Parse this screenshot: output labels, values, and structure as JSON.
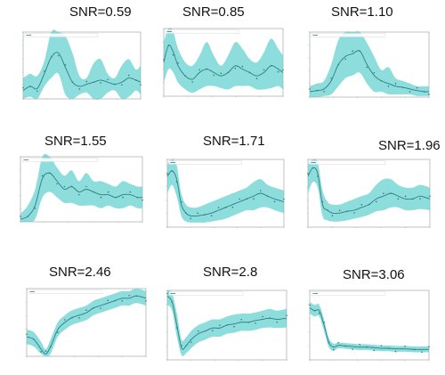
{
  "figure": {
    "colors": {
      "band": "#5ccfcf",
      "band_opacity": 0.7,
      "mean_line": "#2a7f86",
      "points": "#4d6e6e",
      "frame": "#9a9a9a"
    }
  },
  "chart_data": [
    {
      "type": "line",
      "title": "SNR=0.59",
      "xlim": [
        0,
        50
      ],
      "ylim": [
        0,
        1.6
      ],
      "x": [
        0,
        3,
        6,
        9,
        12,
        15,
        18,
        21,
        24,
        27,
        30,
        33,
        36,
        39,
        42,
        45,
        48,
        50
      ],
      "series": [
        {
          "mean": [
            0.2,
            0.3,
            0.25,
            0.6,
            1.0,
            1.1,
            0.75,
            0.4,
            0.3,
            0.35,
            0.4,
            0.45,
            0.4,
            0.35,
            0.4,
            0.5,
            0.45,
            0.4
          ],
          "upper": [
            0.5,
            0.6,
            0.55,
            0.9,
            1.6,
            1.6,
            1.5,
            1.1,
            0.55,
            0.5,
            0.85,
            0.95,
            0.6,
            0.5,
            0.8,
            0.95,
            0.7,
            0.8
          ],
          "lower": [
            0.0,
            0.05,
            0.0,
            0.3,
            0.5,
            0.6,
            0.1,
            0.0,
            0.1,
            0.15,
            0.0,
            0.0,
            0.15,
            0.2,
            0.0,
            0.05,
            0.2,
            0.1
          ]
        }
      ]
    },
    {
      "type": "line",
      "title": "SNR=0.85",
      "xlim": [
        0,
        50
      ],
      "ylim": [
        0,
        1.0
      ],
      "x": [
        0,
        2,
        4,
        6,
        9,
        12,
        15,
        18,
        21,
        24,
        27,
        30,
        33,
        36,
        39,
        42,
        45,
        48,
        50
      ],
      "series": [
        {
          "mean": [
            0.5,
            0.75,
            0.65,
            0.45,
            0.3,
            0.25,
            0.35,
            0.4,
            0.35,
            0.3,
            0.35,
            0.45,
            0.4,
            0.35,
            0.3,
            0.35,
            0.45,
            0.4,
            0.35
          ],
          "upper": [
            0.8,
            1.0,
            0.95,
            0.7,
            0.5,
            0.45,
            0.6,
            0.8,
            0.6,
            0.45,
            0.6,
            0.8,
            0.7,
            0.55,
            0.5,
            0.65,
            0.85,
            0.7,
            0.6
          ],
          "lower": [
            0.2,
            0.4,
            0.35,
            0.2,
            0.1,
            0.05,
            0.1,
            0.15,
            0.15,
            0.12,
            0.1,
            0.15,
            0.15,
            0.15,
            0.1,
            0.1,
            0.12,
            0.15,
            0.1
          ]
        }
      ]
    },
    {
      "type": "line",
      "title": "SNR=1.10",
      "xlim": [
        0,
        50
      ],
      "ylim": [
        0,
        1.2
      ],
      "x": [
        0,
        3,
        6,
        9,
        12,
        15,
        18,
        21,
        24,
        27,
        30,
        33,
        36,
        39,
        42,
        45,
        48,
        50
      ],
      "series": [
        {
          "mean": [
            0.1,
            0.12,
            0.15,
            0.3,
            0.6,
            0.75,
            0.8,
            0.85,
            0.6,
            0.4,
            0.3,
            0.25,
            0.2,
            0.18,
            0.15,
            0.12,
            0.1,
            0.1
          ],
          "upper": [
            0.2,
            0.25,
            0.3,
            0.6,
            1.05,
            1.2,
            1.2,
            1.2,
            1.0,
            0.75,
            0.5,
            0.55,
            0.35,
            0.3,
            0.25,
            0.2,
            0.2,
            0.2
          ],
          "lower": [
            0.0,
            0.0,
            0.02,
            0.05,
            0.2,
            0.35,
            0.4,
            0.45,
            0.25,
            0.1,
            0.1,
            0.05,
            0.05,
            0.05,
            0.05,
            0.02,
            0.02,
            0.02
          ]
        }
      ]
    },
    {
      "type": "line",
      "title": "SNR=1.55",
      "xlim": [
        0,
        50
      ],
      "ylim": [
        0,
        1.2
      ],
      "x": [
        0,
        3,
        6,
        9,
        12,
        15,
        18,
        21,
        24,
        27,
        30,
        33,
        36,
        39,
        42,
        45,
        48,
        50
      ],
      "series": [
        {
          "mean": [
            0.05,
            0.1,
            0.3,
            0.8,
            0.9,
            0.75,
            0.6,
            0.65,
            0.55,
            0.6,
            0.55,
            0.5,
            0.5,
            0.45,
            0.5,
            0.5,
            0.45,
            0.45
          ],
          "upper": [
            0.15,
            0.3,
            0.6,
            1.2,
            1.2,
            1.0,
            0.85,
            0.95,
            0.75,
            0.9,
            0.75,
            0.75,
            0.7,
            0.65,
            0.75,
            0.7,
            0.65,
            0.65
          ],
          "lower": [
            0.0,
            0.0,
            0.05,
            0.45,
            0.55,
            0.45,
            0.35,
            0.35,
            0.3,
            0.3,
            0.3,
            0.25,
            0.3,
            0.25,
            0.25,
            0.3,
            0.25,
            0.25
          ]
        }
      ]
    },
    {
      "type": "line",
      "title": "SNR=1.71",
      "xlim": [
        0,
        50
      ],
      "ylim": [
        0,
        1.2
      ],
      "x": [
        0,
        2,
        4,
        6,
        8,
        10,
        13,
        16,
        19,
        22,
        25,
        28,
        31,
        34,
        37,
        40,
        43,
        46,
        50
      ],
      "series": [
        {
          "mean": [
            0.9,
            1.0,
            0.85,
            0.4,
            0.25,
            0.2,
            0.2,
            0.22,
            0.25,
            0.3,
            0.35,
            0.4,
            0.45,
            0.5,
            0.55,
            0.6,
            0.55,
            0.5,
            0.45
          ],
          "upper": [
            1.1,
            1.2,
            1.1,
            0.6,
            0.4,
            0.35,
            0.35,
            0.4,
            0.45,
            0.5,
            0.55,
            0.6,
            0.65,
            0.7,
            0.8,
            0.85,
            0.75,
            0.7,
            0.65
          ],
          "lower": [
            0.6,
            0.75,
            0.55,
            0.2,
            0.1,
            0.08,
            0.08,
            0.08,
            0.1,
            0.12,
            0.15,
            0.2,
            0.25,
            0.3,
            0.3,
            0.35,
            0.35,
            0.3,
            0.25
          ]
        }
      ]
    },
    {
      "type": "line",
      "title": "SNR=1.96",
      "xlim": [
        0,
        50
      ],
      "ylim": [
        0,
        1.2
      ],
      "x": [
        0,
        2,
        4,
        6,
        8,
        10,
        13,
        16,
        19,
        22,
        25,
        28,
        31,
        34,
        37,
        40,
        43,
        46,
        50
      ],
      "series": [
        {
          "mean": [
            0.9,
            1.05,
            0.95,
            0.4,
            0.3,
            0.25,
            0.25,
            0.28,
            0.3,
            0.35,
            0.4,
            0.5,
            0.55,
            0.6,
            0.55,
            0.5,
            0.5,
            0.55,
            0.5
          ],
          "upper": [
            1.1,
            1.2,
            1.15,
            0.65,
            0.45,
            0.4,
            0.4,
            0.45,
            0.5,
            0.55,
            0.6,
            0.75,
            0.85,
            0.85,
            0.75,
            0.7,
            0.7,
            0.75,
            0.7
          ],
          "lower": [
            0.6,
            0.8,
            0.7,
            0.2,
            0.12,
            0.1,
            0.1,
            0.12,
            0.15,
            0.18,
            0.22,
            0.28,
            0.3,
            0.35,
            0.35,
            0.3,
            0.3,
            0.32,
            0.3
          ]
        }
      ]
    },
    {
      "type": "line",
      "title": "SNR=2.46",
      "xlim": [
        0,
        50
      ],
      "ylim": [
        0,
        1.4
      ],
      "x": [
        0,
        3,
        6,
        8,
        10,
        13,
        16,
        19,
        22,
        25,
        28,
        31,
        34,
        37,
        40,
        43,
        46,
        50
      ],
      "series": [
        {
          "mean": [
            0.4,
            0.35,
            0.15,
            0.05,
            0.2,
            0.55,
            0.7,
            0.8,
            0.85,
            0.9,
            1.0,
            1.05,
            1.1,
            1.15,
            1.2,
            1.2,
            1.25,
            1.2
          ],
          "upper": [
            0.55,
            0.5,
            0.3,
            0.15,
            0.35,
            0.7,
            0.85,
            0.95,
            1.0,
            1.05,
            1.15,
            1.2,
            1.25,
            1.3,
            1.35,
            1.35,
            1.4,
            1.35
          ],
          "lower": [
            0.25,
            0.2,
            0.05,
            0.0,
            0.05,
            0.4,
            0.55,
            0.65,
            0.7,
            0.75,
            0.85,
            0.9,
            0.95,
            1.0,
            1.05,
            1.05,
            1.1,
            1.05
          ]
        }
      ]
    },
    {
      "type": "line",
      "title": "SNR=2.8",
      "xlim": [
        0,
        50
      ],
      "ylim": [
        0,
        1.2
      ],
      "x": [
        0,
        2,
        4,
        6,
        8,
        10,
        13,
        16,
        19,
        22,
        25,
        28,
        31,
        34,
        37,
        40,
        43,
        46,
        50
      ],
      "series": [
        {
          "mean": [
            1.1,
            1.0,
            0.6,
            0.2,
            0.25,
            0.35,
            0.45,
            0.5,
            0.55,
            0.55,
            0.6,
            0.62,
            0.65,
            0.65,
            0.68,
            0.7,
            0.72,
            0.7,
            0.72
          ],
          "upper": [
            1.2,
            1.15,
            0.8,
            0.35,
            0.4,
            0.5,
            0.6,
            0.65,
            0.7,
            0.7,
            0.75,
            0.78,
            0.8,
            0.8,
            0.82,
            0.85,
            0.88,
            0.85,
            0.88
          ],
          "lower": [
            0.95,
            0.85,
            0.4,
            0.08,
            0.12,
            0.2,
            0.3,
            0.35,
            0.4,
            0.4,
            0.45,
            0.47,
            0.5,
            0.5,
            0.52,
            0.55,
            0.56,
            0.55,
            0.56
          ]
        }
      ]
    },
    {
      "type": "line",
      "title": "SNR=3.06",
      "xlim": [
        0,
        50
      ],
      "ylim": [
        0,
        1.2
      ],
      "x": [
        0,
        2,
        4,
        6,
        8,
        10,
        12,
        15,
        18,
        21,
        24,
        27,
        30,
        33,
        36,
        40,
        44,
        47,
        50
      ],
      "series": [
        {
          "mean": [
            0.9,
            0.85,
            0.85,
            0.6,
            0.3,
            0.22,
            0.25,
            0.24,
            0.23,
            0.22,
            0.22,
            0.21,
            0.2,
            0.2,
            0.19,
            0.19,
            0.18,
            0.18,
            0.18
          ],
          "upper": [
            1.0,
            0.95,
            0.95,
            0.7,
            0.38,
            0.28,
            0.3,
            0.29,
            0.28,
            0.27,
            0.27,
            0.26,
            0.25,
            0.25,
            0.24,
            0.24,
            0.23,
            0.23,
            0.23
          ],
          "lower": [
            0.8,
            0.75,
            0.75,
            0.5,
            0.22,
            0.16,
            0.2,
            0.19,
            0.18,
            0.17,
            0.17,
            0.16,
            0.15,
            0.15,
            0.14,
            0.14,
            0.13,
            0.13,
            0.13
          ]
        }
      ]
    }
  ]
}
